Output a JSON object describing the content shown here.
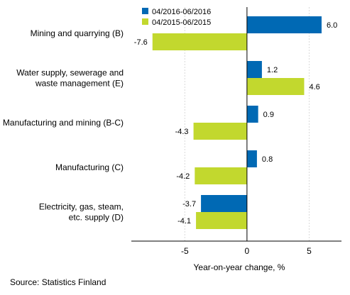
{
  "chart_data": {
    "type": "bar",
    "orientation": "horizontal",
    "categories": [
      [
        "Mining and quarrying (B)"
      ],
      [
        "Water supply, sewerage and",
        "waste management (E)"
      ],
      [
        "Manufacturing and mining (B-C)"
      ],
      [
        "Manufacturing (C)"
      ],
      [
        "Electricity, gas, steam,",
        "etc. supply (D)"
      ]
    ],
    "series": [
      {
        "name": "04/2016-06/2016",
        "color": "#0069b4",
        "values": [
          6.0,
          1.2,
          0.9,
          0.8,
          -3.7
        ],
        "labels": [
          "6.0",
          "1.2",
          "0.9",
          "0.8",
          "-3.7"
        ]
      },
      {
        "name": "04/2015-06/2015",
        "color": "#c2d82e",
        "values": [
          -7.6,
          4.6,
          -4.3,
          -4.2,
          -4.1
        ],
        "labels": [
          "-7.6",
          "4.6",
          "-4.3",
          "-4.2",
          "-4.1"
        ]
      }
    ],
    "xlim": [
      -9.3,
      7.6
    ],
    "xticks": [
      -5,
      0,
      5
    ],
    "xtick_labels": [
      "-5",
      "0",
      "5"
    ],
    "xlabel": "Year-on-year change, %",
    "legend_position": "top-left"
  },
  "source": "Source: Statistics Finland"
}
